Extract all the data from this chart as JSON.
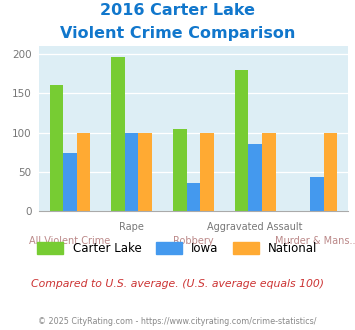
{
  "title_line1": "2016 Carter Lake",
  "title_line2": "Violent Crime Comparison",
  "categories": [
    "All Violent Crime",
    "Rape",
    "Robbery",
    "Aggravated Assault",
    "Murder & Mans..."
  ],
  "cat_top": [
    "All Violent Crime",
    "Rape",
    "Robbery",
    "Aggravated Assault",
    "Murder & Mans..."
  ],
  "series": {
    "Carter Lake": [
      160,
      196,
      104,
      180,
      0
    ],
    "Iowa": [
      74,
      99,
      36,
      85,
      44
    ],
    "National": [
      100,
      100,
      100,
      100,
      100
    ]
  },
  "colors": {
    "Carter Lake": "#77cc33",
    "Iowa": "#4499ee",
    "National": "#ffaa33"
  },
  "ylim": [
    0,
    210
  ],
  "yticks": [
    0,
    50,
    100,
    150,
    200
  ],
  "plot_bg": "#ddeef5",
  "title_color": "#1177cc",
  "subtitle_text": "Compared to U.S. average. (U.S. average equals 100)",
  "subtitle_color": "#cc3333",
  "footer_text": "© 2025 CityRating.com - https://www.cityrating.com/crime-statistics/",
  "footer_color": "#888888",
  "bar_width": 0.22
}
